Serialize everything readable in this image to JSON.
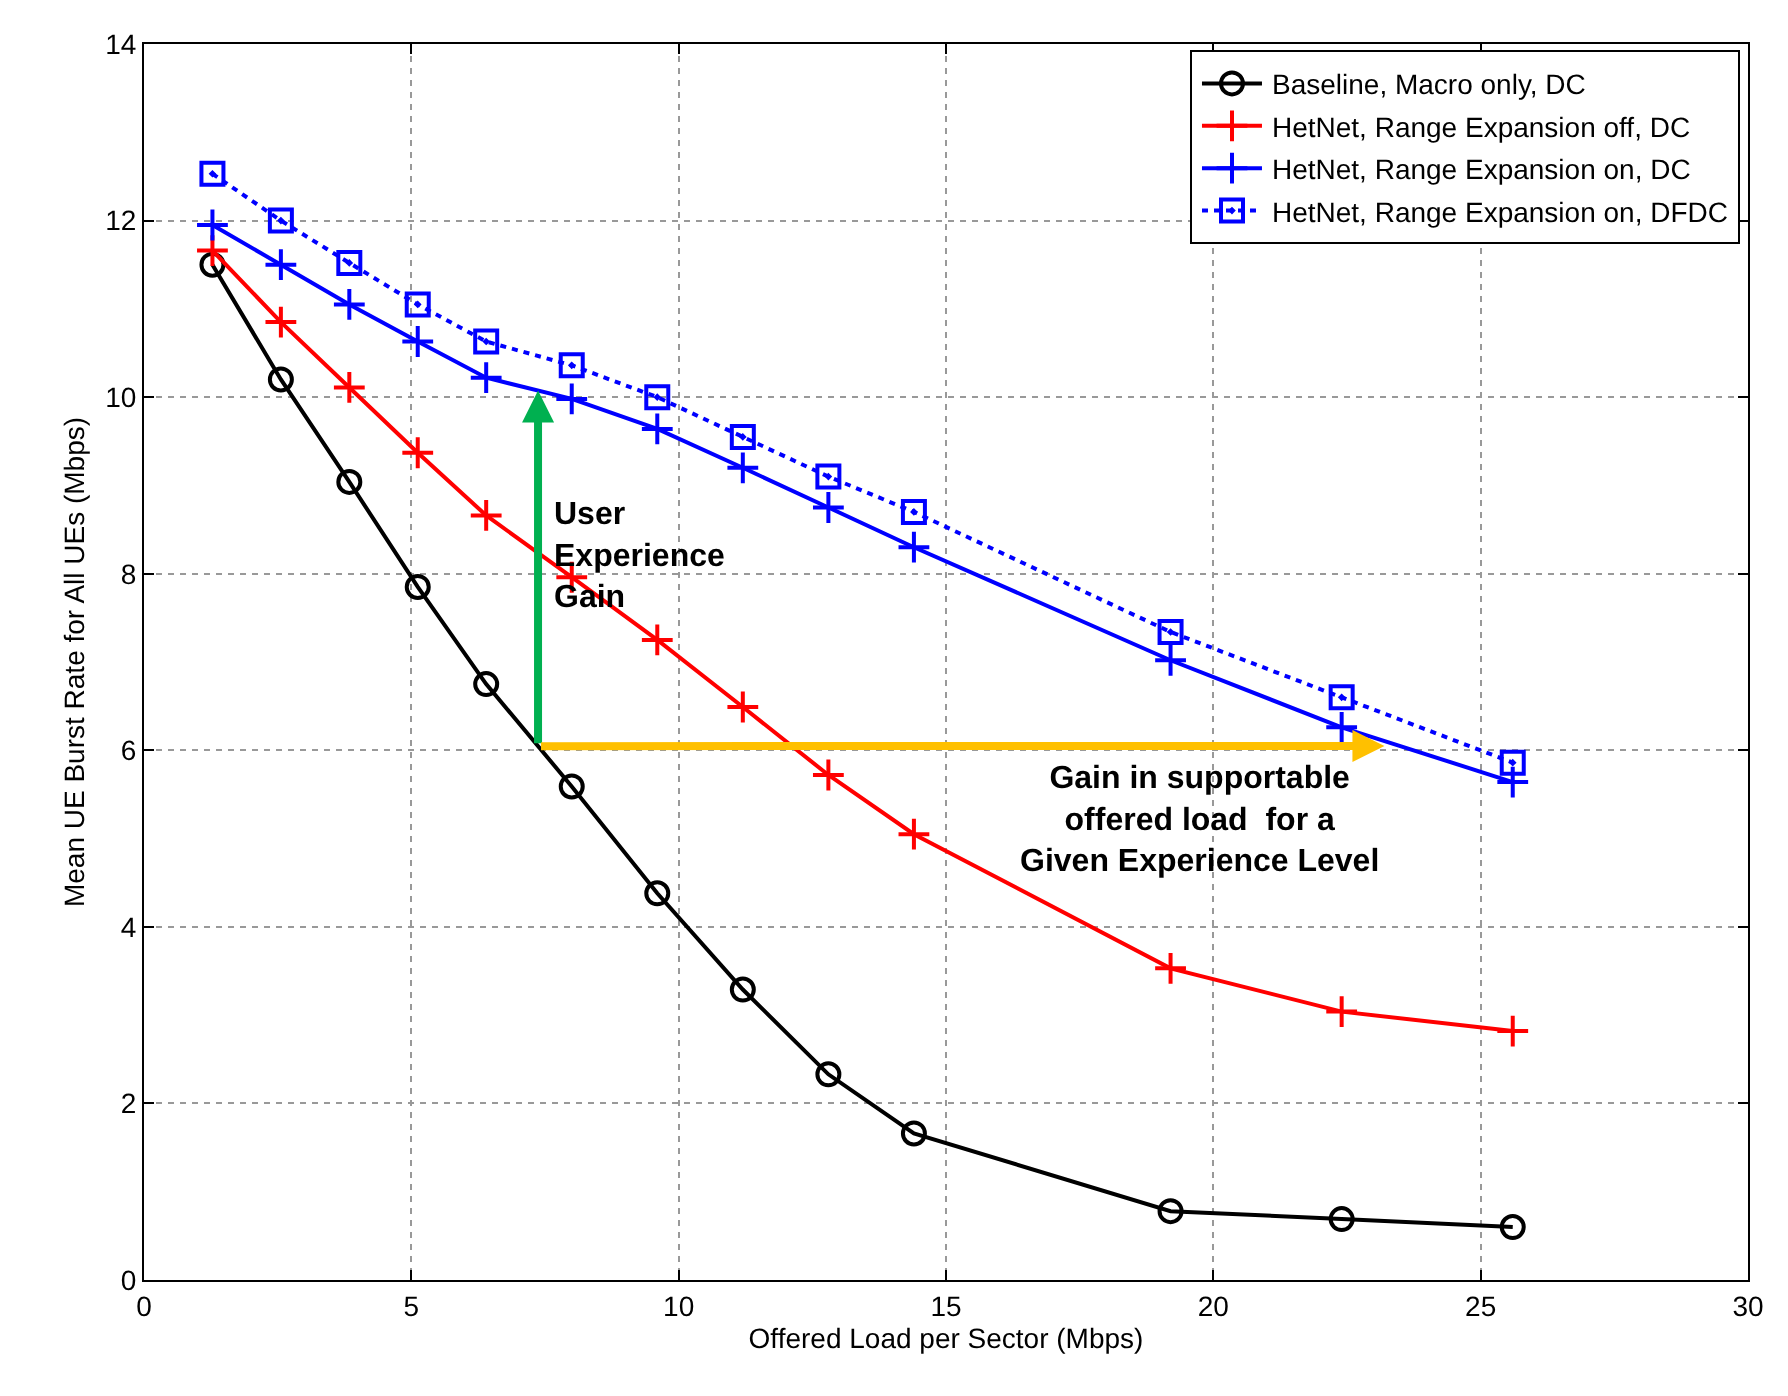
{
  "chart_data": {
    "type": "line",
    "xlabel": "Offered Load per Sector (Mbps)",
    "ylabel": "Mean UE Burst Rate for All UEs (Mbps)",
    "x": [
      1.28,
      2.56,
      3.84,
      5.12,
      6.4,
      8,
      9.6,
      11.2,
      12.8,
      14.4,
      19.2,
      22.4,
      25.6
    ],
    "series": [
      {
        "name": "Baseline, Macro only, DC",
        "color": "#000000",
        "marker": "circle",
        "line_style": "solid",
        "values": [
          11.5,
          10.2,
          9.04,
          7.85,
          6.75,
          5.59,
          4.38,
          3.29,
          2.33,
          1.66,
          0.78,
          0.69,
          0.6
        ]
      },
      {
        "name": "HetNet, Range Expansion off, DC",
        "color": "#ff0000",
        "marker": "cross",
        "line_style": "solid",
        "values": [
          11.66,
          10.85,
          10.11,
          9.37,
          8.66,
          7.96,
          7.25,
          6.49,
          5.72,
          5.05,
          3.53,
          3.04,
          2.82
        ]
      },
      {
        "name": "HetNet, Range Expansion on, DC",
        "color": "#0000ff",
        "marker": "cross",
        "line_style": "solid",
        "values": [
          11.95,
          11.5,
          11.05,
          10.63,
          10.22,
          9.98,
          9.64,
          9.2,
          8.75,
          8.3,
          7.02,
          6.26,
          5.64
        ]
      },
      {
        "name": "HetNet, Range Expansion on, DFDC",
        "color": "#0000ff",
        "marker": "square",
        "line_style": "dotted",
        "values": [
          12.53,
          12.0,
          11.52,
          11.05,
          10.63,
          10.36,
          10.0,
          9.55,
          9.1,
          8.7,
          7.34,
          6.6,
          5.86
        ]
      }
    ],
    "annotations": [
      {
        "text": "User\nExperience\nGain",
        "x": 7.37,
        "y": 8.2
      },
      {
        "text": "Gain in supportable\noffered load  for a\nGiven Experience Level",
        "x": 23.2,
        "y": 6.05
      }
    ],
    "xlim": [
      0,
      30
    ],
    "xticks": [
      0,
      5,
      10,
      15,
      20,
      25,
      30
    ],
    "ylim": [
      0,
      14
    ],
    "yticks": [
      0,
      2,
      4,
      6,
      8,
      10,
      12,
      14
    ],
    "grid": true,
    "legend": "top right"
  }
}
